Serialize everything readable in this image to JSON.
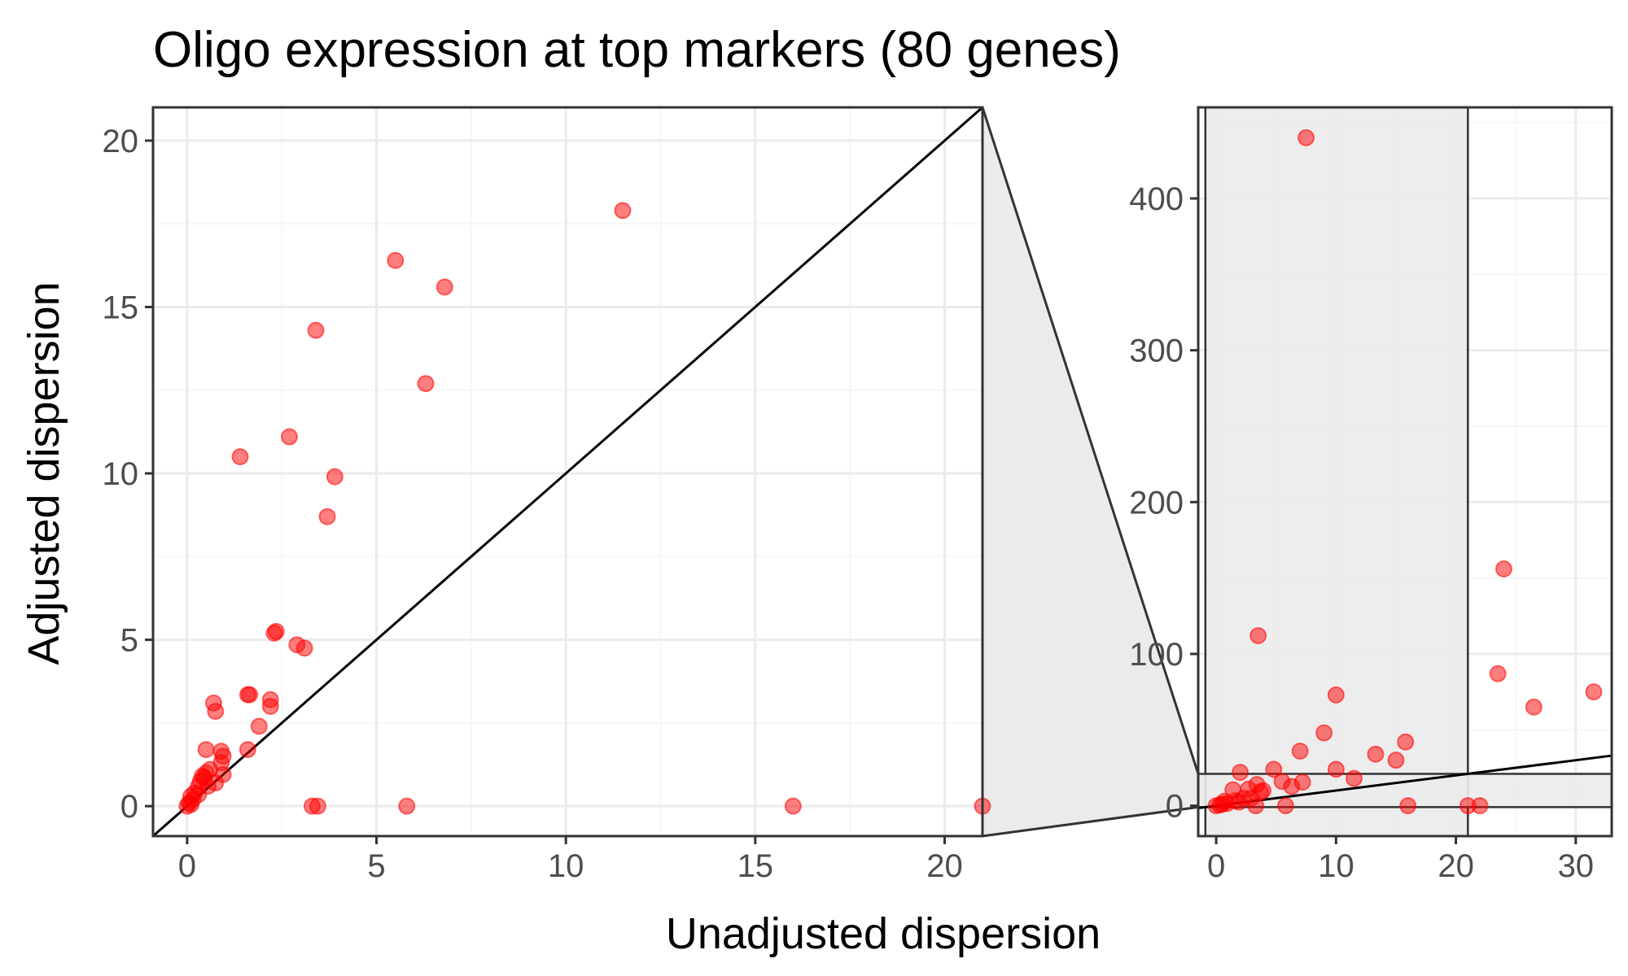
{
  "chart_data": [
    {
      "type": "scatter",
      "panel": "main",
      "title": "Oligo expression at top markers (80 genes)",
      "xlabel": "Unadjusted dispersion",
      "ylabel": "Adjusted dispersion",
      "xlim": [
        -0.9,
        21.0
      ],
      "ylim": [
        -0.9,
        21.0
      ],
      "xticks": [
        0,
        5,
        10,
        15,
        20
      ],
      "yticks": [
        0,
        5,
        10,
        15,
        20
      ],
      "grid": true,
      "reference_line": "y = x",
      "point_color": "#ff0000",
      "points": [
        {
          "x": 11.5,
          "y": 17.9
        },
        {
          "x": 5.5,
          "y": 16.4
        },
        {
          "x": 6.8,
          "y": 15.6
        },
        {
          "x": 3.4,
          "y": 14.3
        },
        {
          "x": 6.3,
          "y": 12.7
        },
        {
          "x": 2.7,
          "y": 11.1
        },
        {
          "x": 1.4,
          "y": 10.5
        },
        {
          "x": 3.9,
          "y": 9.9
        },
        {
          "x": 3.7,
          "y": 8.7
        },
        {
          "x": 2.3,
          "y": 5.2
        },
        {
          "x": 2.35,
          "y": 5.25
        },
        {
          "x": 2.9,
          "y": 4.85
        },
        {
          "x": 3.1,
          "y": 4.75
        },
        {
          "x": 1.6,
          "y": 3.35
        },
        {
          "x": 1.65,
          "y": 3.35
        },
        {
          "x": 2.2,
          "y": 3.2
        },
        {
          "x": 0.7,
          "y": 3.1
        },
        {
          "x": 2.2,
          "y": 3.0
        },
        {
          "x": 0.75,
          "y": 2.85
        },
        {
          "x": 1.9,
          "y": 2.4
        },
        {
          "x": 1.6,
          "y": 1.7
        },
        {
          "x": 0.5,
          "y": 1.7
        },
        {
          "x": 0.9,
          "y": 1.65
        },
        {
          "x": 0.95,
          "y": 1.5
        },
        {
          "x": 0.9,
          "y": 1.3
        },
        {
          "x": 0.6,
          "y": 1.1
        },
        {
          "x": 0.5,
          "y": 1.0
        },
        {
          "x": 0.95,
          "y": 0.95
        },
        {
          "x": 0.4,
          "y": 0.9
        },
        {
          "x": 0.45,
          "y": 0.85
        },
        {
          "x": 0.35,
          "y": 0.75
        },
        {
          "x": 0.75,
          "y": 0.7
        },
        {
          "x": 0.3,
          "y": 0.6
        },
        {
          "x": 0.55,
          "y": 0.6
        },
        {
          "x": 0.2,
          "y": 0.4
        },
        {
          "x": 0.3,
          "y": 0.35
        },
        {
          "x": 0.1,
          "y": 0.3
        },
        {
          "x": 0.15,
          "y": 0.2
        },
        {
          "x": 0.05,
          "y": 0.1
        },
        {
          "x": 0.0,
          "y": 0.0
        },
        {
          "x": 0.1,
          "y": 0.05
        },
        {
          "x": 3.3,
          "y": 0.0
        },
        {
          "x": 3.45,
          "y": 0.0
        },
        {
          "x": 5.8,
          "y": 0.0
        },
        {
          "x": 16.0,
          "y": 0.0
        },
        {
          "x": 21.0,
          "y": 0.0
        }
      ]
    },
    {
      "type": "scatter",
      "panel": "inset",
      "xlim": [
        -1.5,
        33.0
      ],
      "ylim": [
        -20.0,
        460.0
      ],
      "xticks": [
        0,
        10,
        20,
        30
      ],
      "yticks": [
        0,
        100,
        200,
        300,
        400
      ],
      "grid": true,
      "reference_line": "y = x",
      "zoom_region": {
        "xlim": [
          -0.9,
          21.0
        ],
        "ylim": [
          -0.9,
          21.0
        ]
      },
      "point_color": "#ff0000",
      "points": [
        {
          "x": 7.5,
          "y": 440
        },
        {
          "x": 24.0,
          "y": 156
        },
        {
          "x": 3.5,
          "y": 112
        },
        {
          "x": 23.5,
          "y": 87
        },
        {
          "x": 31.5,
          "y": 75
        },
        {
          "x": 10.0,
          "y": 73
        },
        {
          "x": 26.5,
          "y": 65
        },
        {
          "x": 9.0,
          "y": 48
        },
        {
          "x": 15.8,
          "y": 42
        },
        {
          "x": 7.0,
          "y": 36
        },
        {
          "x": 13.3,
          "y": 34
        },
        {
          "x": 15.0,
          "y": 30
        },
        {
          "x": 4.8,
          "y": 24
        },
        {
          "x": 10.0,
          "y": 24
        },
        {
          "x": 2.0,
          "y": 22
        },
        {
          "x": 11.5,
          "y": 18
        },
        {
          "x": 5.5,
          "y": 16
        },
        {
          "x": 7.2,
          "y": 15.5
        },
        {
          "x": 6.3,
          "y": 12.7
        },
        {
          "x": 2.7,
          "y": 11
        },
        {
          "x": 3.9,
          "y": 10
        },
        {
          "x": 3.7,
          "y": 9
        },
        {
          "x": 3.4,
          "y": 14
        },
        {
          "x": 1.4,
          "y": 10.5
        },
        {
          "x": 2.3,
          "y": 5
        },
        {
          "x": 2.9,
          "y": 4.8
        },
        {
          "x": 1.6,
          "y": 3.3
        },
        {
          "x": 0.7,
          "y": 3
        },
        {
          "x": 1.9,
          "y": 2.4
        },
        {
          "x": 0.9,
          "y": 1.5
        },
        {
          "x": 0.5,
          "y": 1
        },
        {
          "x": 0.3,
          "y": 0.5
        },
        {
          "x": 0.0,
          "y": 0.0
        },
        {
          "x": 3.3,
          "y": 0
        },
        {
          "x": 5.8,
          "y": 0
        },
        {
          "x": 16.0,
          "y": 0
        },
        {
          "x": 21.0,
          "y": 0
        },
        {
          "x": 22.0,
          "y": 0
        }
      ]
    }
  ]
}
